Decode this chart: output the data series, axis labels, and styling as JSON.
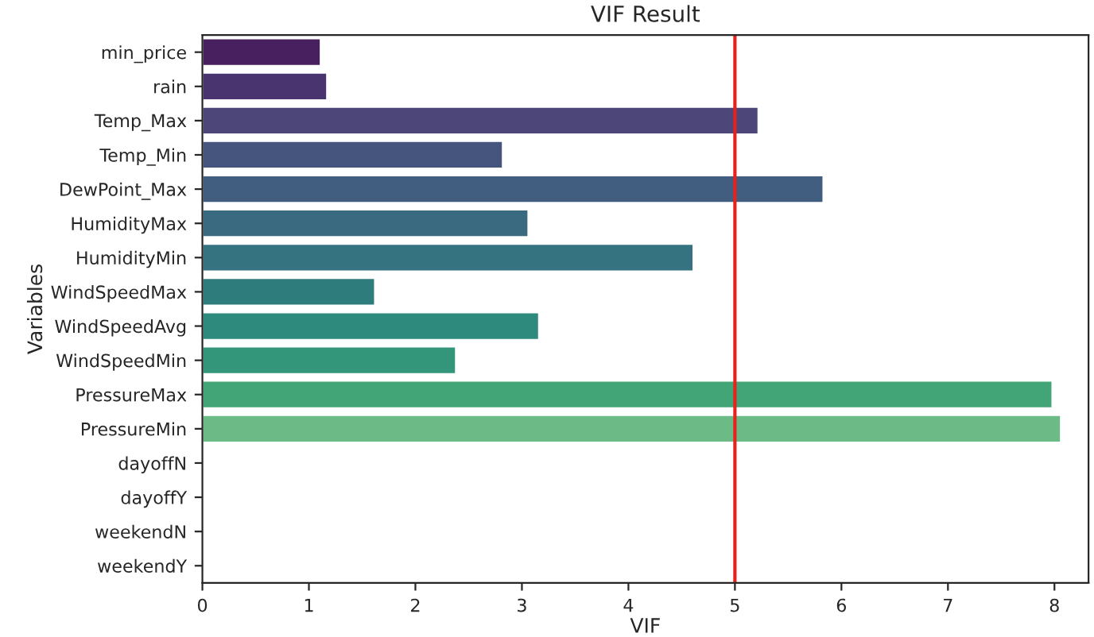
{
  "chart_data": {
    "type": "bar",
    "orientation": "horizontal",
    "title": "VIF Result",
    "xlabel": "VIF",
    "ylabel": "Variables",
    "categories": [
      "min_price",
      "rain",
      "Temp_Max",
      "Temp_Min",
      "DewPoint_Max",
      "HumidityMax",
      "HumidityMin",
      "WindSpeedMax",
      "WindSpeedAvg",
      "WindSpeedMin",
      "PressureMax",
      "PressureMin",
      "dayoffN",
      "dayoffY",
      "weekendN",
      "weekendY"
    ],
    "values": [
      1.11,
      1.17,
      5.22,
      2.82,
      5.83,
      3.06,
      4.61,
      1.62,
      3.16,
      2.38,
      7.98,
      8.06,
      null,
      null,
      null,
      null
    ],
    "colors": [
      "#48205f",
      "#4a3470",
      "#4c4778",
      "#46557d",
      "#415e80",
      "#3a6a80",
      "#367380",
      "#2f7c7c",
      "#2e8a7c",
      "#33967a",
      "#42a577",
      "#6cbb87",
      null,
      null,
      null,
      null
    ],
    "xlim": [
      0,
      8.32
    ],
    "xticks": [
      0,
      1,
      2,
      3,
      4,
      5,
      6,
      7,
      8
    ],
    "ref_lines": [
      {
        "axis": "x",
        "value": 5,
        "color": "#e8211c"
      }
    ],
    "grid": false,
    "legend": false
  }
}
